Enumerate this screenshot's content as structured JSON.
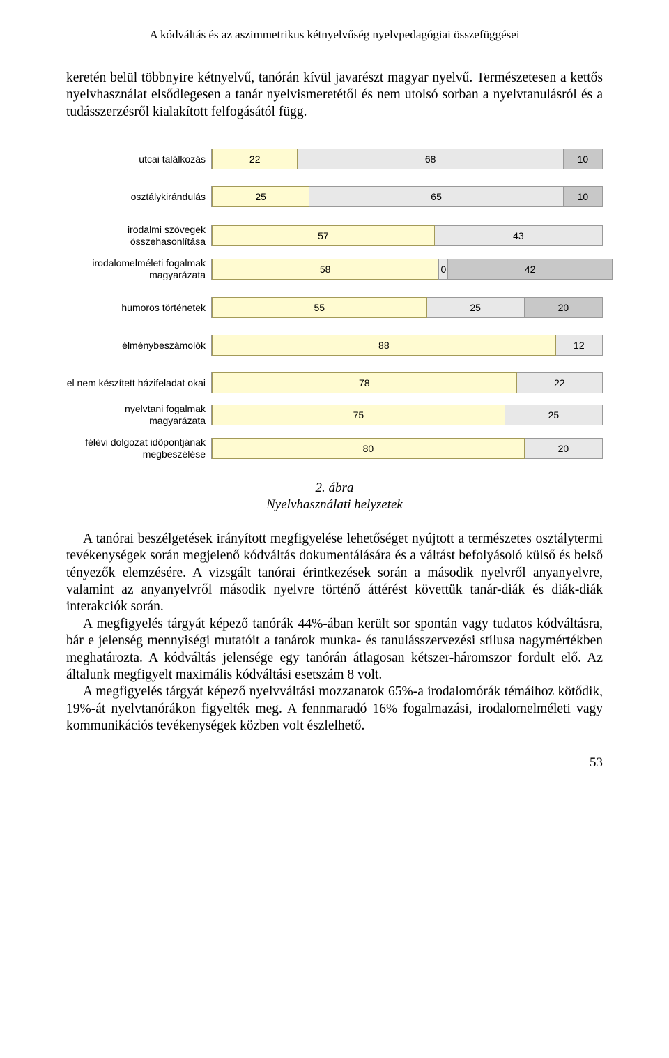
{
  "running_header": "A kódváltás és az aszimmetrikus kétnyelvűség nyelvpedagógiai összefüggései",
  "para1": "keretén belül többnyire kétnyelvű, tanórán kívül javarészt magyar nyelvű. Természetesen a kettős nyelvhasználat elsődlegesen a tanár nyelvismeretétől és nem utolsó sorban a nyelvtanulásról és a tudásszerzésről kialakított felfogásától függ.",
  "chart": {
    "colors": {
      "seg_a": "#fffbd1",
      "seg_b": "#e8e8e8",
      "seg_c": "#c8c8c8",
      "seg_a_border": "#a39a58",
      "seg_b_border": "#999999",
      "text": "#000000"
    },
    "rows": [
      {
        "label": "utcai találkozás",
        "segments": [
          {
            "v": 22,
            "c": "a",
            "b": "a"
          },
          {
            "v": 68,
            "c": "b",
            "b": "b"
          },
          {
            "v": 10,
            "c": "c",
            "b": "b"
          }
        ],
        "gap_after": true
      },
      {
        "label": "osztálykirándulás",
        "segments": [
          {
            "v": 25,
            "c": "a",
            "b": "a"
          },
          {
            "v": 65,
            "c": "b",
            "b": "b"
          },
          {
            "v": 10,
            "c": "c",
            "b": "b"
          }
        ],
        "gap_after": true
      },
      {
        "label": "irodalmi szövegek összehasonlítása",
        "segments": [
          {
            "v": 57,
            "c": "a",
            "b": "a"
          },
          {
            "v": 43,
            "c": "b",
            "b": "b"
          }
        ]
      },
      {
        "label": "irodalomelméleti fogalmak magyarázata",
        "segments": [
          {
            "v": 58,
            "c": "a",
            "b": "a"
          },
          {
            "v": 0,
            "c": "b",
            "b": "b",
            "show_label": true
          },
          {
            "v": 42,
            "c": "c",
            "b": "b"
          }
        ],
        "gap_after": true
      },
      {
        "label": "humoros történetek",
        "segments": [
          {
            "v": 55,
            "c": "a",
            "b": "a"
          },
          {
            "v": 25,
            "c": "b",
            "b": "b"
          },
          {
            "v": 20,
            "c": "c",
            "b": "b"
          }
        ],
        "gap_after": true
      },
      {
        "label": "élménybeszámolók",
        "segments": [
          {
            "v": 88,
            "c": "a",
            "b": "a"
          },
          {
            "v": 12,
            "c": "b",
            "b": "b"
          }
        ],
        "gap_after": true
      },
      {
        "label": "el nem készített házifeladat okai",
        "segments": [
          {
            "v": 78,
            "c": "a",
            "b": "a"
          },
          {
            "v": 22,
            "c": "b",
            "b": "b"
          }
        ]
      },
      {
        "label": "nyelvtani fogalmak magyarázata",
        "segments": [
          {
            "v": 75,
            "c": "a",
            "b": "a"
          },
          {
            "v": 25,
            "c": "b",
            "b": "b"
          }
        ]
      },
      {
        "label": "félévi dolgozat időpontjának megbeszélése",
        "segments": [
          {
            "v": 80,
            "c": "a",
            "b": "a"
          },
          {
            "v": 20,
            "c": "b",
            "b": "b"
          }
        ]
      }
    ]
  },
  "figure_num": "2. ábra",
  "figure_title": "Nyelvhasználati helyzetek",
  "para2": "A tanórai beszélgetések irányított megfigyelése lehetőséget nyújtott a természetes osztálytermi tevékenységek során megjelenő kódváltás dokumentálására és a váltást befolyásoló külső és belső tényezők elemzésére. A vizsgált tanórai érintkezések során a második nyelvről anyanyelvre, valamint az anyanyelvről második nyelvre történő áttérést követtük tanár-diák és diák-diák interakciók során.",
  "para3": "A megfigyelés tárgyát képező tanórák 44%-ában került sor spontán vagy tudatos kódváltásra, bár e jelenség mennyiségi mutatóit a tanárok munka- és tanulásszervezési stílusa nagymértékben meghatározta. A kódváltás jelensége egy tanórán átlagosan kétszer-háromszor fordult elő. Az általunk megfigyelt maximális kódváltási esetszám 8 volt.",
  "para4": "A megfigyelés tárgyát képező nyelvváltási mozzanatok 65%-a irodalomórák témáihoz kötődik, 19%-át nyelvtanórákon figyelték meg. A fennmaradó 16% fogalmazási, irodalomelméleti vagy kommunikációs tevékenységek közben volt észlelhető.",
  "page_number": "53"
}
